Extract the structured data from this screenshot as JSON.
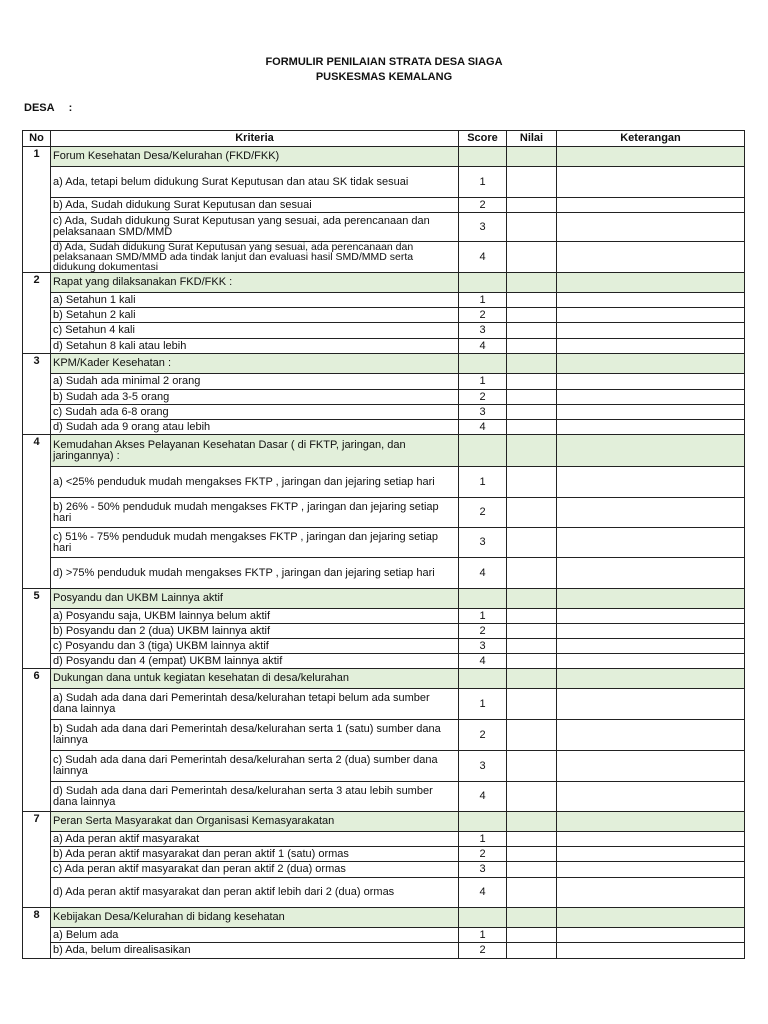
{
  "title_line1": "FORMULIR PENILAIAN STRATA DESA SIAGA",
  "title_line2": "PUSKESMAS KEMALANG",
  "desa_label": "DESA",
  "desa_sep": ":",
  "columns": [
    "No",
    "Kriteria",
    "Score",
    "Nilai",
    "Keterangan"
  ],
  "highlight_color": "#e2efda",
  "sections": [
    {
      "no": "1",
      "title": "Forum Kesehatan Desa/Kelurahan (FKD/FKK)",
      "items": [
        {
          "text": "a)   Ada, tetapi belum didukung Surat Keputusan dan atau SK tidak sesuai",
          "score": "1"
        },
        {
          "text": "b)   Ada, Sudah didukung Surat Keputusan dan sesuai",
          "score": "2"
        },
        {
          "text": "c)   Ada, Sudah didukung Surat Keputusan yang sesuai, ada perencanaan dan pelaksanaan SMD/MMD",
          "score": "3"
        },
        {
          "text": "d)   Ada, Sudah didukung Surat Keputusan yang sesuai, ada perencanaan dan pelaksanaan SMD/MMD ada tindak lanjut dan evaluasi hasil SMD/MMD serta didukung dokumentasi",
          "score": "4"
        }
      ]
    },
    {
      "no": "2",
      "title": "Rapat yang dilaksanakan FKD/FKK :",
      "items": [
        {
          "text": "a)    Setahun 1 kali",
          "score": "1"
        },
        {
          "text": "b)    Setahun 2 kali",
          "score": "2"
        },
        {
          "text": "c)    Setahun 4 kali",
          "score": "3"
        },
        {
          "text": "d)    Setahun 8 kali atau lebih",
          "score": "4"
        }
      ]
    },
    {
      "no": "3",
      "title": "KPM/Kader Kesehatan :",
      "items": [
        {
          "text": "a)    Sudah ada minimal 2 orang",
          "score": "1"
        },
        {
          "text": "b)    Sudah ada 3-5 orang",
          "score": "2"
        },
        {
          "text": "c)    Sudah ada 6-8 orang",
          "score": "3"
        },
        {
          "text": "d)    Sudah ada 9 orang atau lebih",
          "score": "4"
        }
      ]
    },
    {
      "no": "4",
      "title": "Kemudahan Akses Pelayanan Kesehatan Dasar ( di FKTP, jaringan, dan jaringannya) :",
      "items": [
        {
          "text": "a)    <25% penduduk mudah mengakses FKTP , jaringan dan jejaring setiap hari",
          "score": "1"
        },
        {
          "text": "b)    26% - 50% penduduk mudah mengakses FKTP , jaringan dan jejaring setiap hari",
          "score": "2"
        },
        {
          "text": "c)    51% - 75% penduduk mudah mengakses FKTP , jaringan dan jejaring setiap hari",
          "score": "3"
        },
        {
          "text": "d)    >75% penduduk mudah mengakses FKTP , jaringan dan jejaring setiap hari",
          "score": "4"
        }
      ]
    },
    {
      "no": "5",
      "title": "Posyandu dan UKBM Lainnya aktif",
      "items": [
        {
          "text": "a)    Posyandu saja, UKBM lainnya belum aktif",
          "score": "1"
        },
        {
          "text": "b)    Posyandu dan 2 (dua) UKBM lainnya aktif",
          "score": "2"
        },
        {
          "text": "c)    Posyandu dan 3 (tiga) UKBM lainnya aktif",
          "score": "3"
        },
        {
          "text": "d)    Posyandu dan 4 (empat) UKBM lainnya aktif",
          "score": "4"
        }
      ]
    },
    {
      "no": "6",
      "title": "Dukungan dana untuk kegiatan kesehatan di desa/kelurahan",
      "items": [
        {
          "text": "a)    Sudah ada dana dari Pemerintah desa/kelurahan tetapi belum ada sumber dana lainnya",
          "score": "1"
        },
        {
          "text": "b)    Sudah ada dana dari Pemerintah desa/kelurahan serta 1 (satu) sumber dana lainnya",
          "score": "2"
        },
        {
          "text": "c)    Sudah ada dana dari Pemerintah desa/kelurahan serta 2 (dua) sumber dana lainnya",
          "score": "3"
        },
        {
          "text": "d)    Sudah ada dana dari Pemerintah desa/kelurahan serta 3 atau lebih sumber dana lainnya",
          "score": "4"
        }
      ]
    },
    {
      "no": "7",
      "title": "Peran Serta Masyarakat dan Organisasi Kemasyarakatan",
      "items": [
        {
          "text": "a)    Ada peran aktif masyarakat",
          "score": "1"
        },
        {
          "text": "b)    Ada peran aktif masyarakat dan peran aktif 1 (satu) ormas",
          "score": "2"
        },
        {
          "text": "c)    Ada peran aktif masyarakat dan peran aktif 2 (dua) ormas",
          "score": "3"
        },
        {
          "text": "d)    Ada peran aktif masyarakat dan peran aktif lebih dari 2 (dua) ormas",
          "score": "4"
        }
      ]
    },
    {
      "no": "8",
      "title": "Kebijakan Desa/Kelurahan di bidang kesehatan",
      "items": [
        {
          "text": "a)    Belum ada",
          "score": "1"
        },
        {
          "text": "b)    Ada, belum direalisasikan",
          "score": "2"
        }
      ]
    }
  ]
}
